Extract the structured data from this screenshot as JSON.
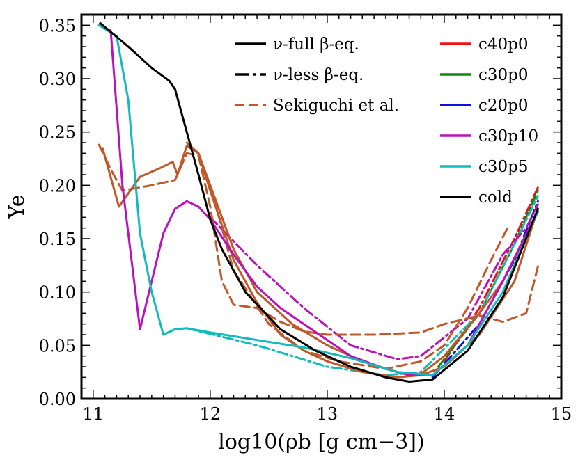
{
  "chart_data": {
    "type": "line",
    "title": "",
    "xlabel": "log10(ρb [g cm−3])",
    "ylabel": "Ye",
    "xlim": [
      10.9,
      15.0
    ],
    "ylim": [
      0.0,
      0.36
    ],
    "xticks": [
      11,
      12,
      13,
      14,
      15
    ],
    "xtick_labels": [
      "11",
      "12",
      "13",
      "14",
      "15"
    ],
    "yticks": [
      0.0,
      0.05,
      0.1,
      0.15,
      0.2,
      0.25,
      0.3,
      0.35
    ],
    "ytick_labels": [
      "0.00",
      "0.05",
      "0.10",
      "0.15",
      "0.20",
      "0.25",
      "0.30",
      "0.35"
    ],
    "legend_left": [
      {
        "label": "ν-full β-eq.",
        "color": "#000000",
        "style": "solid"
      },
      {
        "label": "ν-less β-eq.",
        "color": "#000000",
        "style": "dashdot"
      },
      {
        "label": "Sekiguchi et al.",
        "color": "#c0582a",
        "style": "dashed"
      }
    ],
    "legend_right": [
      {
        "label": "c40p0",
        "color": "#ee1111"
      },
      {
        "label": "c30p0",
        "color": "#118811"
      },
      {
        "label": "c20p0",
        "color": "#1111dd"
      },
      {
        "label": "c30p10",
        "color": "#bb11bb"
      },
      {
        "label": "c30p5",
        "color": "#11bbbb"
      },
      {
        "label": "cold",
        "color": "#000000"
      }
    ],
    "series": [
      {
        "name": "c40p0 ν-less",
        "color": "#ee1111",
        "style": "dashdot",
        "x": [
          14.0,
          14.3,
          14.6,
          14.8
        ],
        "y": [
          0.035,
          0.085,
          0.15,
          0.198
        ]
      },
      {
        "name": "c30p0 ν-less",
        "color": "#118811",
        "style": "dashdot",
        "x": [
          13.95,
          14.3,
          14.6,
          14.8
        ],
        "y": [
          0.03,
          0.08,
          0.145,
          0.195
        ]
      },
      {
        "name": "c20p0 ν-less",
        "color": "#1111dd",
        "style": "dashdot",
        "x": [
          13.9,
          14.3,
          14.6,
          14.8
        ],
        "y": [
          0.02,
          0.07,
          0.13,
          0.185
        ]
      },
      {
        "name": "c30p5 ν-less",
        "color": "#11bbbb",
        "style": "dashdot",
        "x": [
          11.8,
          12.4,
          13.0,
          13.5,
          13.8,
          14.3,
          14.6,
          14.8
        ],
        "y": [
          0.066,
          0.05,
          0.03,
          0.022,
          0.025,
          0.08,
          0.145,
          0.19
        ]
      },
      {
        "name": "c30p10 ν-less",
        "color": "#bb11bb",
        "style": "dashdot",
        "x": [
          12.0,
          12.4,
          12.8,
          13.2,
          13.6,
          13.8,
          14.2,
          14.5,
          14.7,
          14.8
        ],
        "y": [
          0.17,
          0.125,
          0.085,
          0.05,
          0.037,
          0.04,
          0.075,
          0.135,
          0.16,
          0.182
        ]
      },
      {
        "name": "Sekiguchi dashed upper",
        "color": "#c0582a",
        "style": "dashed",
        "x": [
          11.05,
          11.15,
          11.25,
          11.5,
          11.7,
          11.8,
          11.9,
          12.0,
          12.1,
          12.2,
          12.4,
          12.6,
          12.8,
          13.0,
          13.4,
          13.8,
          14.0,
          14.3,
          14.5,
          14.7,
          14.8
        ],
        "y": [
          0.238,
          0.215,
          0.195,
          0.2,
          0.205,
          0.23,
          0.228,
          0.18,
          0.11,
          0.088,
          0.085,
          0.072,
          0.063,
          0.06,
          0.06,
          0.062,
          0.07,
          0.078,
          0.072,
          0.08,
          0.124
        ]
      },
      {
        "name": "Sekiguchi dashed lower",
        "color": "#c0582a",
        "style": "dashed",
        "x": [
          12.0,
          12.2,
          12.5,
          12.8,
          13.1,
          13.5,
          13.8,
          14.0,
          14.2,
          14.4,
          14.55
        ],
        "y": [
          0.2,
          0.12,
          0.07,
          0.045,
          0.035,
          0.028,
          0.035,
          0.05,
          0.085,
          0.13,
          0.162
        ]
      },
      {
        "name": "Sekiguchi solid A",
        "color": "#c0582a",
        "style": "solid",
        "x": [
          11.08,
          11.22,
          11.4,
          11.55,
          11.68,
          11.72,
          11.8,
          11.9,
          12.0,
          12.2,
          12.4,
          12.6,
          12.8,
          13.0,
          13.3,
          13.6,
          13.8,
          14.0,
          14.3,
          14.6,
          14.8
        ],
        "y": [
          0.235,
          0.18,
          0.208,
          0.215,
          0.222,
          0.21,
          0.237,
          0.23,
          0.195,
          0.13,
          0.09,
          0.06,
          0.045,
          0.035,
          0.025,
          0.02,
          0.022,
          0.03,
          0.06,
          0.11,
          0.178
        ]
      },
      {
        "name": "Sekiguchi solid B",
        "color": "#c0582a",
        "style": "solid",
        "x": [
          11.8,
          11.9,
          12.0,
          12.2,
          12.4,
          12.7,
          13.0,
          13.3,
          13.6,
          13.8,
          14.0,
          14.3,
          14.5,
          14.8
        ],
        "y": [
          0.24,
          0.23,
          0.2,
          0.14,
          0.1,
          0.07,
          0.05,
          0.035,
          0.025,
          0.023,
          0.04,
          0.08,
          0.11,
          0.175
        ]
      },
      {
        "name": "c30p10",
        "color": "#bb11bb",
        "style": "solid",
        "x": [
          11.05,
          11.15,
          11.25,
          11.4,
          11.5,
          11.6,
          11.7,
          11.8,
          11.9,
          12.0,
          12.2,
          12.4,
          12.6,
          12.8,
          13.0,
          13.2,
          13.5,
          13.7,
          13.9,
          14.2,
          14.5,
          14.8
        ],
        "y": [
          0.35,
          0.345,
          0.2,
          0.065,
          0.11,
          0.155,
          0.178,
          0.185,
          0.18,
          0.168,
          0.135,
          0.105,
          0.085,
          0.07,
          0.055,
          0.04,
          0.028,
          0.022,
          0.022,
          0.05,
          0.11,
          0.176
        ]
      },
      {
        "name": "c30p5",
        "color": "#11bbbb",
        "style": "solid",
        "x": [
          11.05,
          11.2,
          11.3,
          11.4,
          11.5,
          11.6,
          11.7,
          11.8,
          12.0,
          12.4,
          12.8,
          13.2,
          13.6,
          13.9,
          14.2,
          14.5,
          14.8
        ],
        "y": [
          0.35,
          0.34,
          0.28,
          0.155,
          0.1,
          0.06,
          0.065,
          0.066,
          0.062,
          0.055,
          0.048,
          0.038,
          0.025,
          0.022,
          0.05,
          0.1,
          0.176
        ]
      },
      {
        "name": "cold",
        "color": "#000000",
        "style": "solid",
        "x": [
          11.06,
          11.3,
          11.5,
          11.65,
          11.7,
          11.75,
          11.8,
          11.9,
          12.0,
          12.1,
          12.3,
          12.6,
          12.9,
          13.2,
          13.5,
          13.7,
          13.9,
          14.2,
          14.5,
          14.8
        ],
        "y": [
          0.352,
          0.33,
          0.31,
          0.298,
          0.29,
          0.27,
          0.25,
          0.21,
          0.168,
          0.14,
          0.1,
          0.065,
          0.045,
          0.03,
          0.02,
          0.016,
          0.018,
          0.045,
          0.095,
          0.178
        ]
      }
    ]
  }
}
